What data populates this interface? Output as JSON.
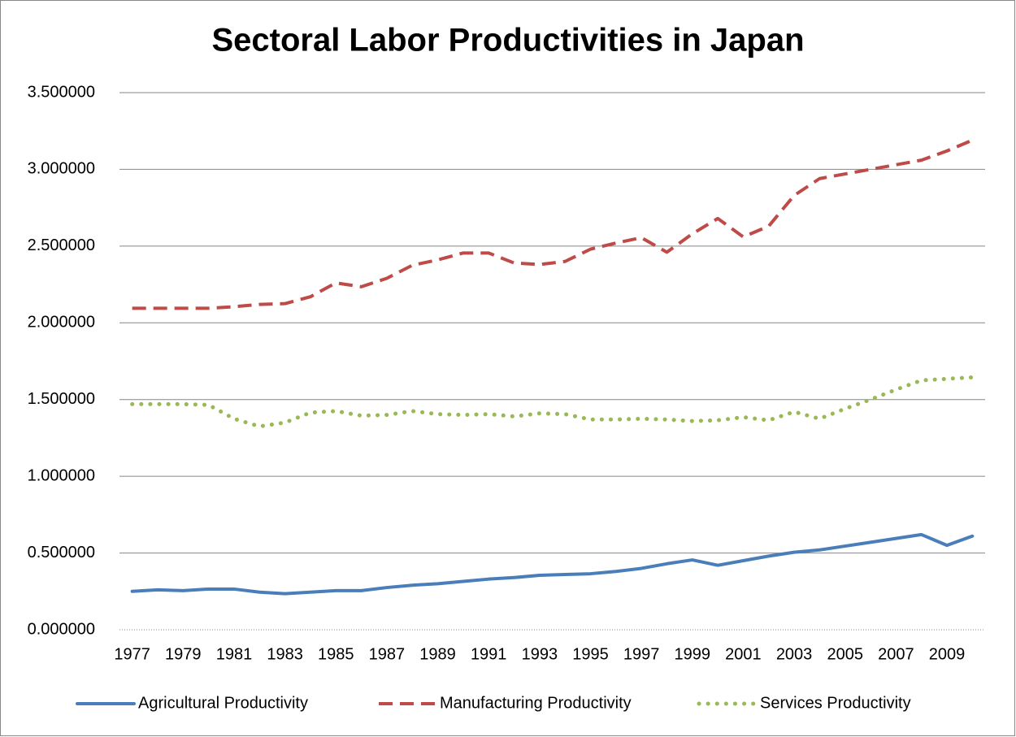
{
  "chart_data": {
    "type": "line",
    "title": "Sectoral Labor Productivities in Japan",
    "categories": [
      "1977",
      null,
      "1979",
      null,
      "1981",
      null,
      "1983",
      null,
      "1985",
      null,
      "1987",
      null,
      "1989",
      null,
      "1991",
      null,
      "1993",
      null,
      "1995",
      null,
      "1997",
      null,
      "1999",
      null,
      "2001",
      null,
      "2003",
      null,
      "2005",
      null,
      "2007",
      null,
      "2009",
      null
    ],
    "series": [
      {
        "name": "Agricultural Productivity",
        "color": "#4a7ebb",
        "style": "solid",
        "values": [
          0.25,
          0.26,
          0.255,
          0.265,
          0.265,
          0.245,
          0.235,
          0.245,
          0.255,
          0.255,
          0.275,
          0.29,
          0.3,
          0.315,
          0.33,
          0.34,
          0.355,
          0.36,
          0.365,
          0.38,
          0.4,
          0.43,
          0.455,
          0.42,
          0.45,
          0.48,
          0.505,
          0.52,
          0.545,
          0.57,
          0.595,
          0.62,
          0.55,
          0.61
        ]
      },
      {
        "name": "Manufacturing Productivity",
        "color": "#be4b48",
        "style": "dashed",
        "values": [
          2.095,
          2.095,
          2.095,
          2.095,
          2.105,
          2.12,
          2.125,
          2.17,
          2.26,
          2.235,
          2.29,
          2.375,
          2.41,
          2.455,
          2.455,
          2.39,
          2.38,
          2.4,
          2.48,
          2.52,
          2.555,
          2.46,
          2.58,
          2.68,
          2.56,
          2.63,
          2.83,
          2.94,
          2.97,
          3.0,
          3.03,
          3.06,
          3.12,
          3.19
        ]
      },
      {
        "name": "Services Productivity",
        "color": "#98b954",
        "style": "dotted",
        "values": [
          1.47,
          1.47,
          1.47,
          1.465,
          1.375,
          1.325,
          1.35,
          1.415,
          1.425,
          1.395,
          1.4,
          1.425,
          1.405,
          1.4,
          1.405,
          1.39,
          1.41,
          1.405,
          1.37,
          1.37,
          1.375,
          1.37,
          1.36,
          1.365,
          1.385,
          1.365,
          1.42,
          1.375,
          1.44,
          1.5,
          1.565,
          1.625,
          1.635,
          1.645
        ]
      }
    ],
    "ylim": [
      0,
      3.5
    ],
    "yticks": [
      {
        "value": 0,
        "label": "0.000000"
      },
      {
        "value": 0.5,
        "label": "0.500000"
      },
      {
        "value": 1,
        "label": "1.000000"
      },
      {
        "value": 1.5,
        "label": "1.500000"
      },
      {
        "value": 2,
        "label": "2.000000"
      },
      {
        "value": 2.5,
        "label": "2.500000"
      },
      {
        "value": 3,
        "label": "3.000000"
      },
      {
        "value": 3.5,
        "label": "3.500000"
      }
    ],
    "grid": true,
    "legend": "bottom"
  }
}
